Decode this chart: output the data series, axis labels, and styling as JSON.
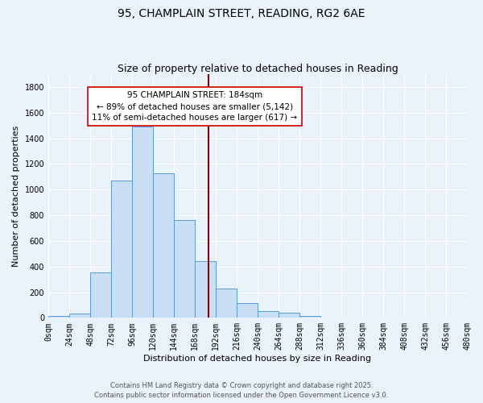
{
  "title": "95, CHAMPLAIN STREET, READING, RG2 6AE",
  "subtitle": "Size of property relative to detached houses in Reading",
  "xlabel": "Distribution of detached houses by size in Reading",
  "ylabel": "Number of detached properties",
  "bin_edges": [
    0,
    24,
    48,
    72,
    96,
    120,
    144,
    168,
    192,
    216,
    240,
    264,
    288,
    312,
    336,
    360,
    384,
    408,
    432,
    456,
    480
  ],
  "bar_heights": [
    15,
    35,
    355,
    1070,
    1490,
    1130,
    760,
    445,
    230,
    115,
    55,
    40,
    15,
    0,
    0,
    0,
    0,
    0,
    0,
    0
  ],
  "bar_color": "#c8dff5",
  "bar_edge_color": "#5b9bd5",
  "vline_x": 184,
  "vline_color": "#8b0000",
  "annotation_title": "95 CHAMPLAIN STREET: 184sqm",
  "annotation_line1": "← 89% of detached houses are smaller (5,142)",
  "annotation_line2": "11% of semi-detached houses are larger (617) →",
  "ylim": [
    0,
    1900
  ],
  "yticks": [
    0,
    200,
    400,
    600,
    800,
    1000,
    1200,
    1400,
    1600,
    1800
  ],
  "xtick_labels": [
    "0sqm",
    "24sqm",
    "48sqm",
    "72sqm",
    "96sqm",
    "120sqm",
    "144sqm",
    "168sqm",
    "192sqm",
    "216sqm",
    "240sqm",
    "264sqm",
    "288sqm",
    "312sqm",
    "336sqm",
    "360sqm",
    "384sqm",
    "408sqm",
    "432sqm",
    "456sqm",
    "480sqm"
  ],
  "footer_line1": "Contains HM Land Registry data © Crown copyright and database right 2025.",
  "footer_line2": "Contains public sector information licensed under the Open Government Licence v3.0.",
  "bg_color": "#eaf2fb",
  "plot_bg_color": "#eaf2fb",
  "grid_color": "#ffffff",
  "title_fontsize": 10,
  "subtitle_fontsize": 9,
  "axis_label_fontsize": 8,
  "tick_fontsize": 7,
  "footer_fontsize": 6,
  "annotation_fontsize": 7.5
}
